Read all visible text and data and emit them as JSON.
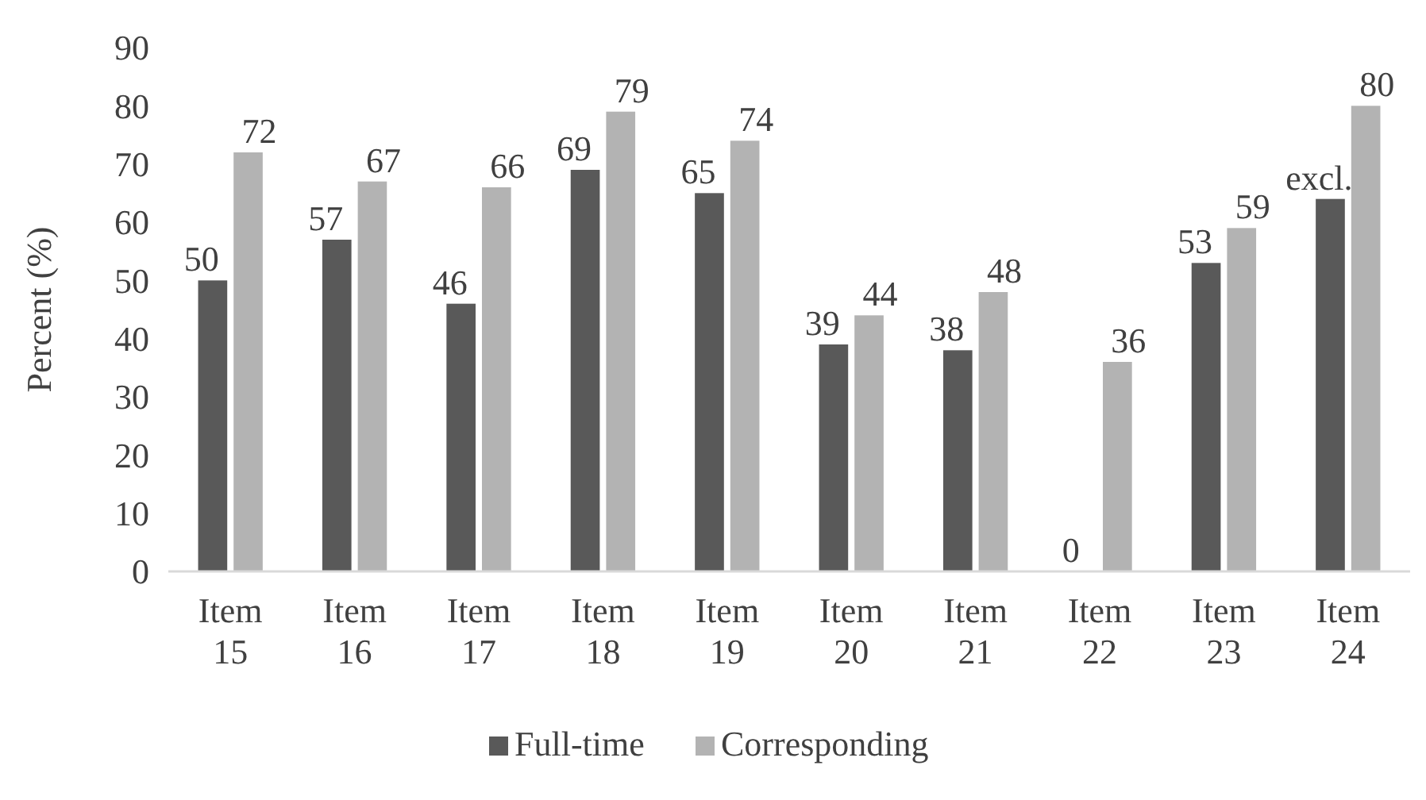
{
  "chart_data": {
    "type": "bar",
    "ylabel": "Percent (%)",
    "categories": [
      "Item 15",
      "Item 16",
      "Item 17",
      "Item 18",
      "Item 19",
      "Item 20",
      "Item 21",
      "Item 22",
      "Item 23",
      "Item 24"
    ],
    "series": [
      {
        "name": "Full-time",
        "color": "#595959",
        "values": [
          50,
          57,
          46,
          69,
          65,
          39,
          38,
          0,
          53,
          64
        ],
        "value_labels": [
          "50",
          "57",
          "46",
          "69",
          "65",
          "39",
          "38",
          "0",
          "53",
          "excl."
        ]
      },
      {
        "name": "Corresponding",
        "color": "#b3b3b3",
        "values": [
          72,
          67,
          66,
          79,
          74,
          44,
          48,
          36,
          59,
          80
        ],
        "value_labels": [
          "72",
          "67",
          "66",
          "79",
          "74",
          "44",
          "48",
          "36",
          "59",
          "80"
        ]
      }
    ],
    "ylim": [
      0,
      90
    ],
    "yticks": [
      0,
      10,
      20,
      30,
      40,
      50,
      60,
      70,
      80,
      90
    ],
    "grid": false,
    "legend": "bottom"
  }
}
